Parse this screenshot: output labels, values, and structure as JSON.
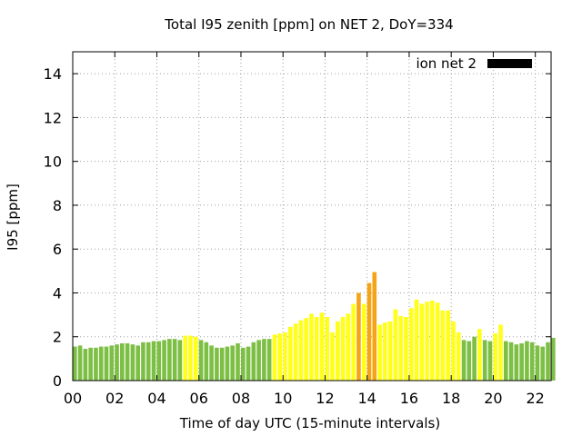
{
  "chart_data": {
    "type": "bar",
    "title": "Total I95 zenith [ppm] on NET 2, DoY=334",
    "xlabel": "Time of day UTC (15-minute intervals)",
    "ylabel": "I95 [ppm]",
    "ylim": [
      0,
      15
    ],
    "yticks": [
      0,
      2,
      4,
      6,
      8,
      10,
      12,
      14
    ],
    "xlim": [
      0,
      22.75
    ],
    "xticks": [
      0,
      2,
      4,
      6,
      8,
      10,
      12,
      14,
      16,
      18,
      20,
      22
    ],
    "xtick_labels": [
      "00",
      "02",
      "04",
      "06",
      "08",
      "10",
      "12",
      "14",
      "16",
      "18",
      "20",
      "22"
    ],
    "grid": true,
    "legend": {
      "position": "top-right",
      "entries": [
        {
          "label": "ion net 2",
          "color": "#000000"
        }
      ]
    },
    "interval_hours": 0.25,
    "colors": {
      "low": "#7dbf45",
      "medium": "#ffff1a",
      "high": "#f5a418"
    },
    "series": [
      {
        "name": "ion net 2",
        "values": [
          1.55,
          1.6,
          1.45,
          1.5,
          1.5,
          1.55,
          1.55,
          1.6,
          1.65,
          1.7,
          1.7,
          1.65,
          1.6,
          1.75,
          1.75,
          1.8,
          1.8,
          1.85,
          1.9,
          1.9,
          1.85,
          2.05,
          2.05,
          2.0,
          1.85,
          1.75,
          1.6,
          1.5,
          1.5,
          1.55,
          1.6,
          1.7,
          1.5,
          1.55,
          1.75,
          1.85,
          1.9,
          1.9,
          2.1,
          2.15,
          2.2,
          2.45,
          2.6,
          2.75,
          2.85,
          3.05,
          2.9,
          3.1,
          2.9,
          2.2,
          2.7,
          2.9,
          3.05,
          3.5,
          4.0,
          3.5,
          4.45,
          4.95,
          2.55,
          2.65,
          2.7,
          3.25,
          2.95,
          2.9,
          3.3,
          3.7,
          3.5,
          3.6,
          3.65,
          3.55,
          3.2,
          3.2,
          2.7,
          2.2,
          1.85,
          1.8,
          2.0,
          2.35,
          1.85,
          1.8,
          2.15,
          2.55,
          1.8,
          1.75,
          1.65,
          1.7,
          1.8,
          1.75,
          1.6,
          1.55,
          1.75,
          1.95
        ],
        "levels": [
          "low",
          "low",
          "low",
          "low",
          "low",
          "low",
          "low",
          "low",
          "low",
          "low",
          "low",
          "low",
          "low",
          "low",
          "low",
          "low",
          "low",
          "low",
          "low",
          "low",
          "low",
          "medium",
          "medium",
          "medium",
          "low",
          "low",
          "low",
          "low",
          "low",
          "low",
          "low",
          "low",
          "low",
          "low",
          "low",
          "low",
          "low",
          "low",
          "medium",
          "medium",
          "medium",
          "medium",
          "medium",
          "medium",
          "medium",
          "medium",
          "medium",
          "medium",
          "medium",
          "medium",
          "medium",
          "medium",
          "medium",
          "medium",
          "high",
          "medium",
          "high",
          "high",
          "medium",
          "medium",
          "medium",
          "medium",
          "medium",
          "medium",
          "medium",
          "medium",
          "medium",
          "medium",
          "medium",
          "medium",
          "medium",
          "medium",
          "medium",
          "medium",
          "low",
          "low",
          "low",
          "medium",
          "low",
          "low",
          "medium",
          "medium",
          "low",
          "low",
          "low",
          "low",
          "low",
          "low",
          "low",
          "low",
          "low",
          "low"
        ]
      }
    ]
  }
}
